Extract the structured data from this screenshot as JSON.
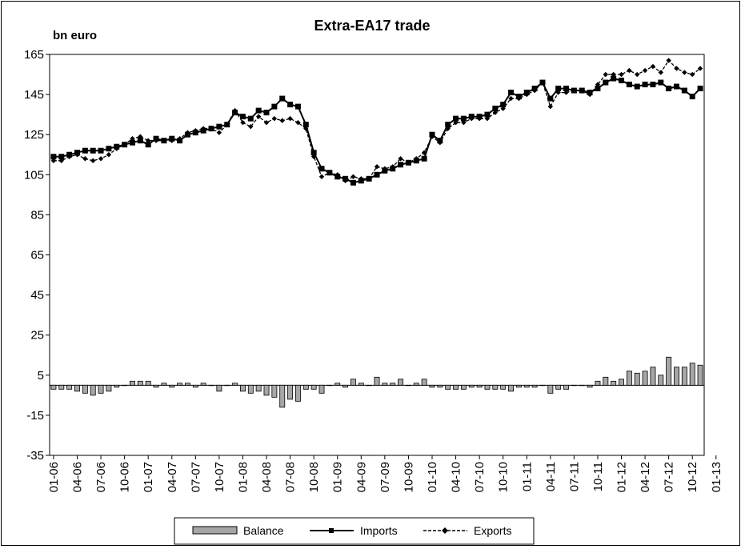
{
  "chart_data": {
    "type": "bar+line",
    "title": "Extra-EA17 trade",
    "unit_label": "bn euro",
    "ylim": [
      -35,
      165
    ],
    "yticks": [
      165,
      145,
      125,
      105,
      85,
      65,
      45,
      25,
      5,
      -15,
      -35
    ],
    "xtick_labels": [
      "01-06",
      "04-06",
      "07-06",
      "10-06",
      "01-07",
      "04-07",
      "07-07",
      "10-07",
      "01-08",
      "04-08",
      "07-08",
      "10-08",
      "01-09",
      "04-09",
      "07-09",
      "10-09",
      "01-10",
      "04-10",
      "07-10",
      "10-10",
      "01-11",
      "04-11",
      "07-11",
      "10-11",
      "01-12",
      "04-12",
      "07-12",
      "10-12",
      "01-13"
    ],
    "legend": {
      "position": "bottom",
      "entries": [
        "Balance",
        "Imports",
        "Exports"
      ]
    },
    "series": [
      {
        "name": "Imports",
        "values": [
          114,
          114,
          115,
          116,
          117,
          117,
          117,
          118,
          119,
          120,
          121,
          122,
          120,
          123,
          122,
          123,
          122,
          125,
          126,
          127,
          128,
          129,
          130,
          136,
          134,
          133,
          137,
          136,
          139,
          143,
          140,
          139,
          130,
          116,
          108,
          106,
          104,
          103,
          101,
          102,
          103,
          105,
          107,
          108,
          110,
          111,
          112,
          113,
          125,
          122,
          130,
          133,
          133,
          134,
          134,
          135,
          138,
          140,
          146,
          144,
          146,
          148,
          151,
          143,
          148,
          148,
          147,
          147,
          146,
          148,
          151,
          153,
          152,
          150,
          149,
          150,
          150,
          151,
          148,
          149,
          147,
          144,
          148
        ]
      },
      {
        "name": "Exports",
        "values": [
          112,
          112,
          114,
          115,
          113,
          112,
          113,
          115,
          118,
          120,
          123,
          124,
          122,
          122,
          122,
          122,
          123,
          126,
          127,
          128,
          128,
          126,
          130,
          137,
          131,
          129,
          134,
          131,
          133,
          132,
          133,
          131,
          128,
          114,
          104,
          106,
          105,
          102,
          104,
          103,
          103,
          109,
          108,
          109,
          113,
          111,
          113,
          116,
          124,
          121,
          128,
          131,
          131,
          133,
          133,
          133,
          136,
          138,
          143,
          143,
          145,
          147,
          151,
          139,
          146,
          146,
          147,
          147,
          145,
          150,
          155,
          155,
          155,
          157,
          155,
          157,
          159,
          156,
          162,
          158,
          156,
          155,
          158
        ]
      },
      {
        "name": "Balance",
        "values": [
          -2,
          -2,
          -2,
          -3,
          -4,
          -5,
          -4,
          -3,
          -1,
          0,
          2,
          2,
          2,
          -1,
          1,
          -1,
          1,
          1,
          -1,
          1,
          0,
          -3,
          0,
          1,
          -3,
          -4,
          -3,
          -5,
          -6,
          -11,
          -7,
          -8,
          -2,
          -2,
          -4,
          0,
          1,
          -1,
          3,
          1,
          0,
          4,
          1,
          1,
          3,
          0,
          1,
          3,
          -1,
          -1,
          -2,
          -2,
          -2,
          -1,
          -1,
          -2,
          -2,
          -2,
          -3,
          -1,
          -1,
          -1,
          0,
          -4,
          -2,
          -2,
          0,
          0,
          -1,
          2,
          4,
          2,
          3,
          7,
          6,
          7,
          9,
          5,
          14,
          9,
          9,
          11,
          10
        ]
      }
    ],
    "colors": {
      "imports": "#000000",
      "exports": "#000000",
      "balance_fill": "#a6a6a6",
      "balance_stroke": "#000000"
    }
  }
}
